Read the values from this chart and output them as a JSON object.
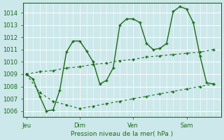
{
  "background_color": "#cce8ea",
  "grid_color": "#b0d8dc",
  "line_color": "#1a6b1a",
  "title": "Pression niveau de la mer( hPa )",
  "x_ticks_labels": [
    "Jeu",
    "Dim",
    "Ven",
    "Sam"
  ],
  "x_ticks_pos": [
    0,
    48,
    96,
    144
  ],
  "xlim": [
    -3,
    175
  ],
  "ylim": [
    1005.5,
    1014.8
  ],
  "yticks": [
    1006,
    1007,
    1008,
    1009,
    1010,
    1011,
    1012,
    1013,
    1014
  ],
  "main_x": [
    0,
    6,
    12,
    18,
    24,
    30,
    36,
    42,
    48,
    54,
    60,
    66,
    72,
    78,
    84,
    90,
    96,
    102,
    108,
    114,
    120,
    126,
    132,
    138,
    144,
    150,
    156,
    162,
    168
  ],
  "main_y": [
    1009.0,
    1008.6,
    1007.2,
    1006.0,
    1006.1,
    1007.7,
    1010.8,
    1011.7,
    1011.7,
    1010.9,
    1010.0,
    1008.2,
    1008.5,
    1009.5,
    1013.0,
    1013.5,
    1013.5,
    1013.2,
    1011.5,
    1011.0,
    1011.1,
    1011.5,
    1014.1,
    1014.5,
    1014.3,
    1013.2,
    1010.5,
    1008.3,
    1008.2
  ],
  "upper_x": [
    0,
    12,
    24,
    36,
    48,
    60,
    72,
    84,
    96,
    108,
    120,
    132,
    144,
    156,
    168
  ],
  "upper_y": [
    1009.0,
    1009.2,
    1009.3,
    1009.5,
    1009.6,
    1009.8,
    1009.9,
    1010.1,
    1010.2,
    1010.4,
    1010.5,
    1010.6,
    1010.7,
    1010.8,
    1011.0
  ],
  "lower_x": [
    0,
    12,
    24,
    36,
    48,
    60,
    72,
    84,
    96,
    108,
    120,
    132,
    144,
    156,
    168
  ],
  "lower_y": [
    1009.0,
    1007.5,
    1006.8,
    1006.5,
    1006.2,
    1006.4,
    1006.6,
    1006.8,
    1007.0,
    1007.2,
    1007.4,
    1007.6,
    1007.8,
    1008.0,
    1008.2
  ]
}
